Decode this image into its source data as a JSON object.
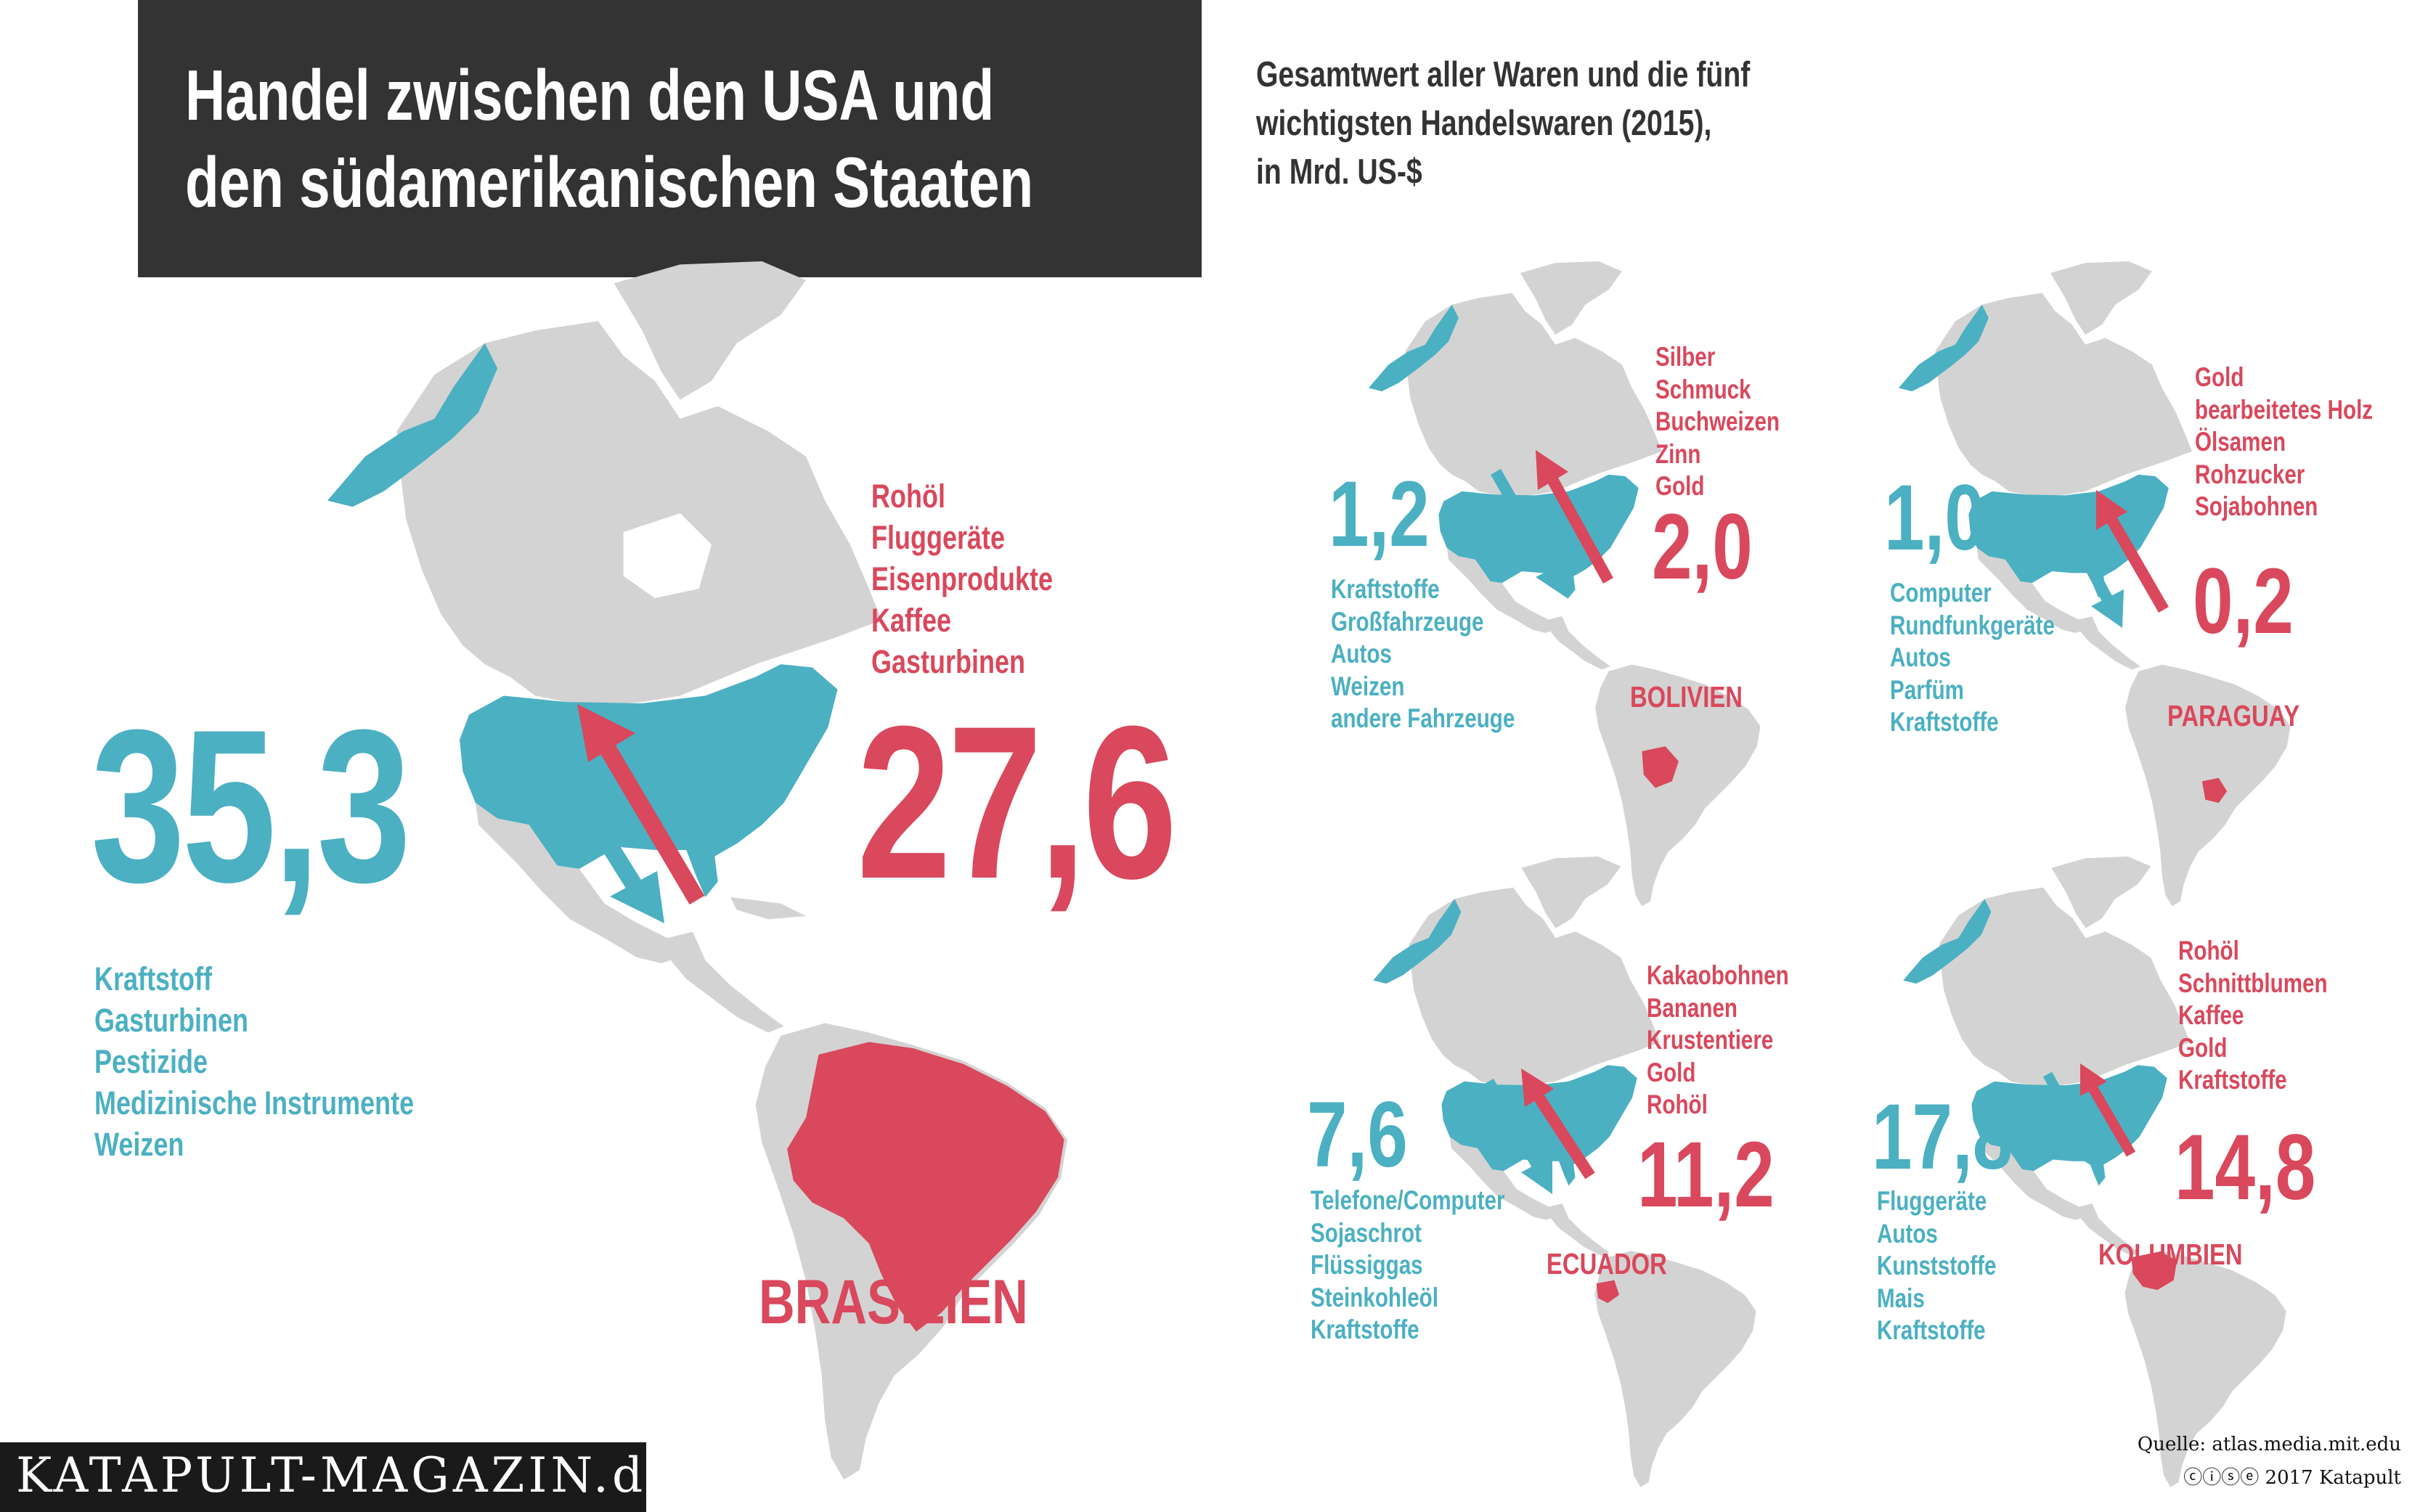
{
  "title": {
    "line1": "Handel zwischen den USA und",
    "line2": "den südamerikanischen Staaten"
  },
  "subtitle": {
    "line1": "Gesamtwert aller Waren und die fünf",
    "line2": "wichtigsten Handelswaren (2015),",
    "line3": "in Mrd. US-$"
  },
  "colors": {
    "usa_export": "#4bb0c2",
    "usa_import": "#d9485c",
    "land": "#d3d3d3",
    "header": "#333333"
  },
  "panels": {
    "brazil": {
      "country": "BRASILIEN",
      "export_value": "35,3",
      "import_value": "27,6",
      "export_goods": [
        "Kraftstoff",
        "Gasturbinen",
        "Pestizide",
        "Medizinische Instrumente",
        "Weizen"
      ],
      "import_goods": [
        "Rohöl",
        "Fluggeräte",
        "Eisenprodukte",
        "Kaffee",
        "Gasturbinen"
      ]
    },
    "bolivia": {
      "country": "BOLIVIEN",
      "export_value": "1,2",
      "import_value": "2,0",
      "export_goods": [
        "Kraftstoffe",
        "Großfahrzeuge",
        "Autos",
        "Weizen",
        "andere Fahrzeuge"
      ],
      "import_goods": [
        "Silber",
        "Schmuck",
        "Buchweizen",
        "Zinn",
        "Gold"
      ]
    },
    "paraguay": {
      "country": "PARAGUAY",
      "export_value": "1,0",
      "import_value": "0,2",
      "export_goods": [
        "Computer",
        "Rundfunkgeräte",
        "Autos",
        "Parfüm",
        "Kraftstoffe"
      ],
      "import_goods": [
        "Gold",
        "bearbeitetes Holz",
        "Ölsamen",
        "Rohzucker",
        "Sojabohnen"
      ]
    },
    "ecuador": {
      "country": "ECUADOR",
      "export_value": "7,6",
      "import_value": "11,2",
      "export_goods": [
        "Telefone/Computer",
        "Sojaschrot",
        "Flüssiggas",
        "Steinkohleöl",
        "Kraftstoffe"
      ],
      "import_goods": [
        "Kakaobohnen",
        "Bananen",
        "Krustentiere",
        "Gold",
        "Rohöl"
      ]
    },
    "colombia": {
      "country": "KOLUMBIEN",
      "export_value": "17,8",
      "import_value": "14,8",
      "export_goods": [
        "Fluggeräte",
        "Autos",
        "Kunststoffe",
        "Mais",
        "Kraftstoffe"
      ],
      "import_goods": [
        "Rohöl",
        "Schnittblumen",
        "Kaffee",
        "Gold",
        "Kraftstoffe"
      ]
    }
  },
  "footer": {
    "brand": "KATAPULT-MAGAZIN.de",
    "source": "Quelle: atlas.media.mit.edu",
    "credit": "ⓒⓘⓢⓔ 2017 Katapult"
  }
}
